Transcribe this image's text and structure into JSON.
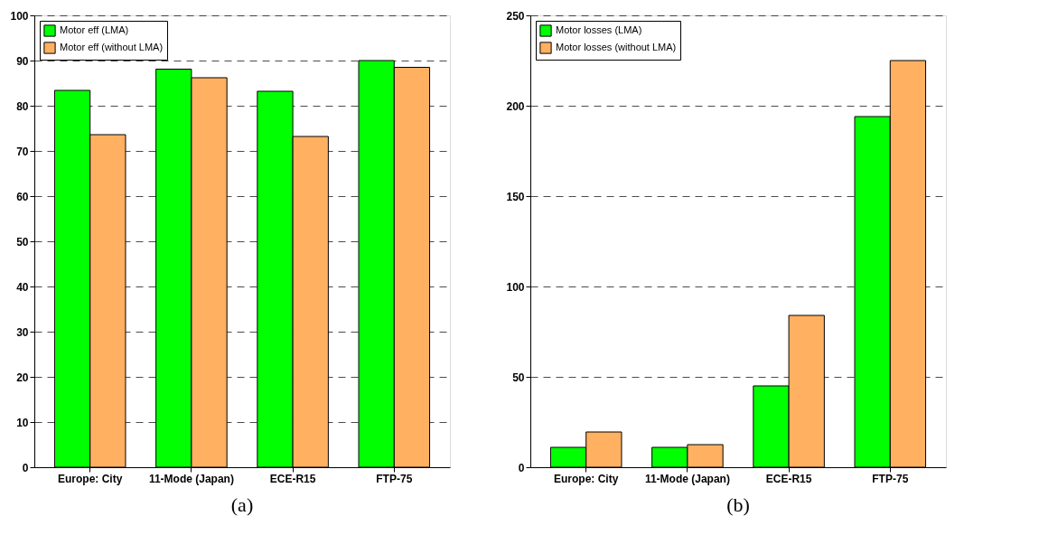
{
  "chart_data": [
    {
      "type": "bar",
      "title": "(a)",
      "categories": [
        "Europe: City",
        "11-Mode (Japan)",
        "ECE-R15",
        "FTP-75"
      ],
      "series": [
        {
          "name": "Motor eff (LMA)",
          "color": "#00ff00",
          "values": [
            83.4,
            88.1,
            83.2,
            90.0
          ]
        },
        {
          "name": "Motor eff (without LMA)",
          "color": "#ffb061",
          "values": [
            73.6,
            86.2,
            73.2,
            88.5
          ]
        }
      ],
      "ylim": [
        0,
        100
      ],
      "yticks": [
        0,
        10,
        20,
        30,
        40,
        50,
        60,
        70,
        80,
        90,
        100
      ],
      "grid": "y",
      "legend": "top left"
    },
    {
      "type": "bar",
      "title": "(b)",
      "categories": [
        "Europe: City",
        "11-Mode (Japan)",
        "ECE-R15",
        "FTP-75"
      ],
      "series": [
        {
          "name": "Motor losses (LMA)",
          "color": "#00ff00",
          "values": [
            11,
            11,
            45,
            194
          ]
        },
        {
          "name": "Motor losses (without LMA)",
          "color": "#ffb061",
          "values": [
            19.5,
            12.5,
            84,
            225
          ]
        }
      ],
      "ylim": [
        0,
        250
      ],
      "yticks": [
        0,
        50,
        100,
        150,
        200,
        250
      ],
      "grid": "y",
      "legend": "top left"
    }
  ]
}
